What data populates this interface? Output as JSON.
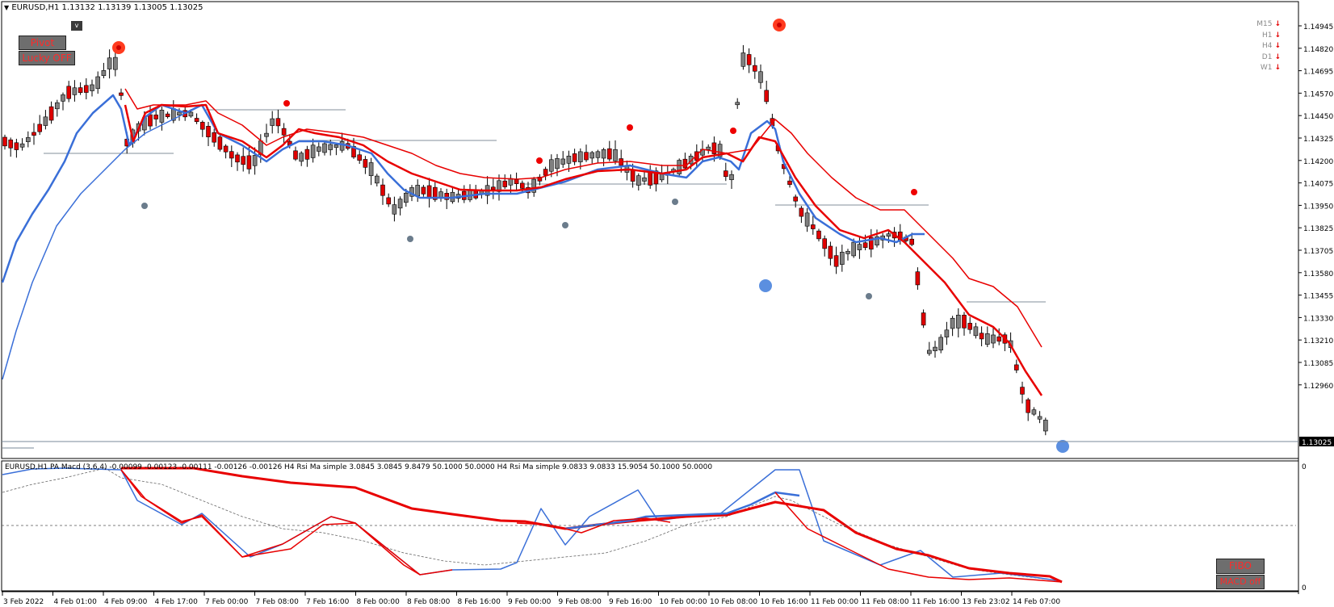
{
  "header": {
    "symbol_line": "EURUSD,H1  1.13132 1.13139 1.13005 1.13025",
    "collapse_label": "v"
  },
  "buttons": {
    "pivot": "Pivot",
    "lucky": "Lucky OFF",
    "fibo": "FIBO",
    "macd": "MACD off"
  },
  "timeframes": [
    {
      "label": "M15",
      "arrow": "down"
    },
    {
      "label": "H1",
      "arrow": "down"
    },
    {
      "label": "H4",
      "arrow": "down"
    },
    {
      "label": "D1",
      "arrow": "down"
    },
    {
      "label": "W1",
      "arrow": "down"
    }
  ],
  "price_axis": {
    "ticks": [
      "1.14945",
      "1.14820",
      "1.14695",
      "1.14570",
      "1.14450",
      "1.14325",
      "1.14200",
      "1.14075",
      "1.13950",
      "1.13825",
      "1.13705",
      "1.13580",
      "1.13455",
      "1.13330",
      "1.13210",
      "1.13085",
      "1.12960"
    ],
    "current": "1.13025"
  },
  "sub_window": {
    "title": "EURUSD,H1 PA Macd (3,6,4) -0.00099 -0.00123 -0.00111 -0.00126 -0.00126  H4 Rsi Ma simple 3.0845 3.0845 9.8479 50.1000 50.0000  H4 Rsi Ma simple 9.0833 9.0833 15.9054 50.1000 50.0000",
    "axis_top": "0",
    "axis_bottom": "0"
  },
  "time_axis": [
    "3 Feb 2022",
    "4 Feb 01:00",
    "4 Feb 09:00",
    "4 Feb 17:00",
    "7 Feb 00:00",
    "7 Feb 08:00",
    "7 Feb 16:00",
    "8 Feb 00:00",
    "8 Feb 08:00",
    "8 Feb 16:00",
    "9 Feb 00:00",
    "9 Feb 08:00",
    "9 Feb 16:00",
    "10 Feb 00:00",
    "10 Feb 08:00",
    "10 Feb 16:00",
    "11 Feb 00:00",
    "11 Feb 08:00",
    "11 Feb 16:00",
    "13 Feb 23:02",
    "14 Feb 07:00"
  ],
  "colors": {
    "bull": "#808080",
    "bear": "#e00000",
    "ma_red": "#e80000",
    "ma_blue": "#3a6fd8",
    "pivot_red": "#ff3b1f",
    "pivot_gray": "#6b7c8c",
    "pivot_blue": "#5b8fe0"
  }
}
